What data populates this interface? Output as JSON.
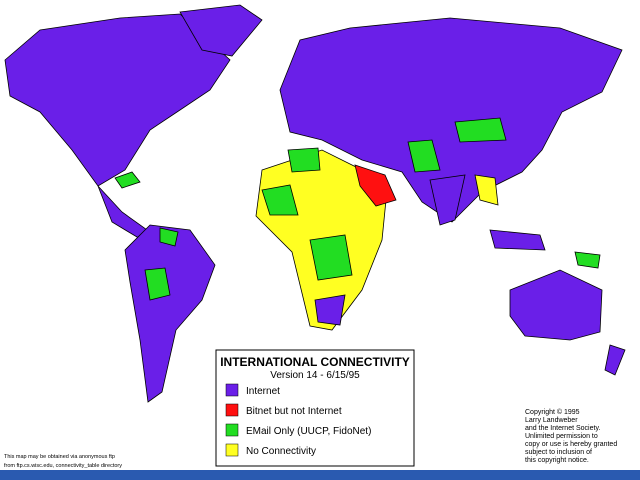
{
  "legend": {
    "title": "INTERNATIONAL CONNECTIVITY",
    "subtitle": "Version 14 - 6/15/95",
    "items": [
      {
        "label": "Internet",
        "color": "#6a1fe8"
      },
      {
        "label": "Bitnet but not Internet",
        "color": "#ff1010"
      },
      {
        "label": "EMail Only (UUCP, FidoNet)",
        "color": "#22dd22"
      },
      {
        "label": "No Connectivity",
        "color": "#ffff22"
      }
    ]
  },
  "copyright": [
    "Copyright © 1995",
    "Larry Landweber",
    "and the Internet Society.",
    "Unlimited permission to",
    "copy or use is hereby granted",
    "subject to inclusion of",
    "this copyright notice."
  ],
  "footnote": [
    "This map may be obtained via anonymous ftp",
    "from ftp.cs.wisc.edu, connectivity_table directory"
  ]
}
